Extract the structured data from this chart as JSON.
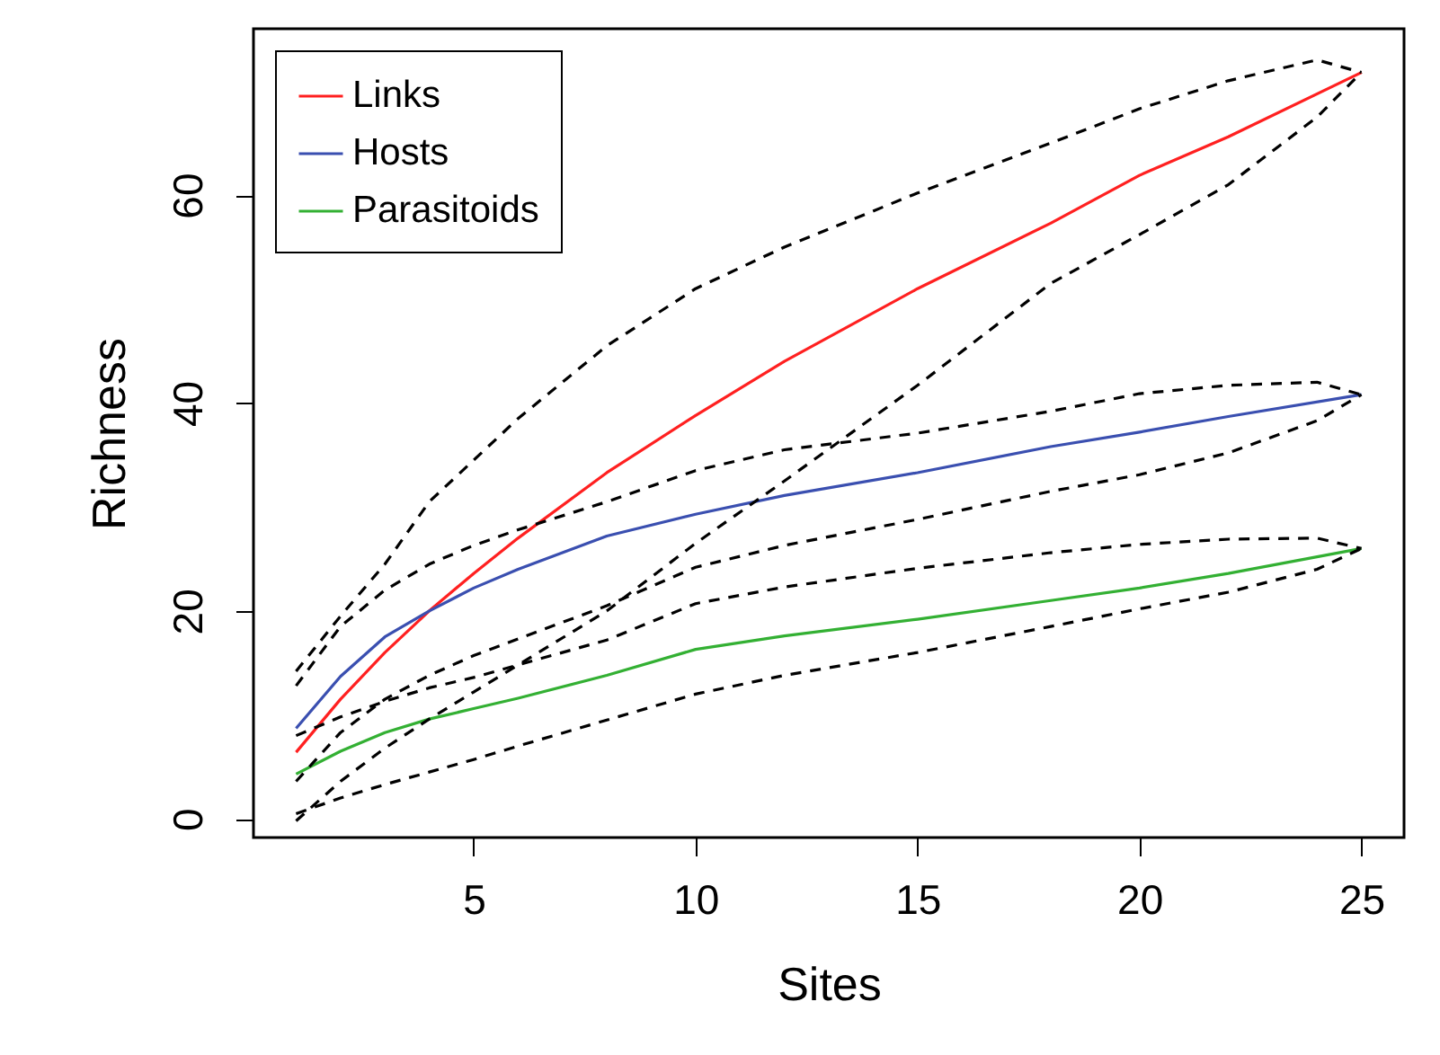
{
  "chart_data": {
    "type": "line",
    "xlabel": "Sites",
    "ylabel": "Richness",
    "xlim": [
      0.04,
      25.96
    ],
    "ylim": [
      -1.8,
      76
    ],
    "xticks": [
      5,
      10,
      15,
      20,
      25
    ],
    "yticks": [
      0,
      20,
      40,
      60
    ],
    "grid": false,
    "legend": "top left",
    "line_style": "solid",
    "series": [
      {
        "name": "Links",
        "color": "#ff2020",
        "x": [
          1,
          2,
          3,
          4,
          5,
          6,
          8,
          10,
          12,
          15,
          18,
          20,
          22,
          25
        ],
        "values": [
          6.4,
          11.5,
          16,
          20,
          23.6,
          27,
          33.3,
          38.8,
          44,
          51,
          57.3,
          61.9,
          65.6,
          71.8
        ]
      },
      {
        "name": "Hosts",
        "color": "#3a4fb0",
        "x": [
          1,
          2,
          3,
          4,
          5,
          6,
          8,
          10,
          12,
          15,
          18,
          20,
          22,
          25
        ],
        "values": [
          8.7,
          13.7,
          17.5,
          20,
          22.2,
          24,
          27.2,
          29.3,
          31.1,
          33.3,
          35.8,
          37.2,
          38.7,
          40.8
        ]
      },
      {
        "name": "Parasitoids",
        "color": "#33b033",
        "x": [
          1,
          2,
          3,
          4,
          5,
          6,
          8,
          10,
          12,
          15,
          18,
          20,
          22,
          25
        ],
        "values": [
          4.3,
          6.5,
          8.3,
          9.6,
          10.6,
          11.6,
          13.8,
          16.3,
          17.6,
          19.2,
          21,
          22.2,
          23.6,
          26
        ]
      },
      {
        "color": "#000000",
        "line_style": "dashed",
        "x": [
          1,
          2,
          3,
          4,
          5,
          6,
          8,
          10,
          12,
          15,
          18,
          20,
          22,
          24,
          25
        ],
        "values": [
          14.2,
          19.5,
          24.5,
          30.5,
          34.5,
          38.5,
          45.5,
          51,
          55,
          60.2,
          65,
          68.3,
          71,
          73,
          71.8
        ]
      },
      {
        "color": "#000000",
        "line_style": "dashed",
        "x": [
          1,
          2,
          3,
          4,
          5,
          6,
          8,
          10,
          12,
          15,
          18,
          20,
          22,
          24,
          25
        ],
        "values": [
          -0.2,
          3.6,
          6.8,
          9.6,
          12.2,
          14.8,
          20,
          26.5,
          32.5,
          41.7,
          51.5,
          56.2,
          61,
          67.5,
          71.8
        ]
      },
      {
        "color": "#000000",
        "line_style": "dashed",
        "x": [
          1,
          2,
          3,
          4,
          5,
          6,
          8,
          10,
          12,
          15,
          18,
          20,
          22,
          24,
          25
        ],
        "values": [
          12.8,
          18.5,
          22,
          24.5,
          26.3,
          27.8,
          30.5,
          33.5,
          35.5,
          37.1,
          39.2,
          40.9,
          41.7,
          42,
          40.8
        ]
      },
      {
        "color": "#000000",
        "line_style": "dashed",
        "x": [
          1,
          2,
          3,
          4,
          5,
          6,
          8,
          10,
          12,
          15,
          18,
          20,
          22,
          24,
          25
        ],
        "values": [
          3.6,
          8.3,
          11.5,
          13.8,
          15.7,
          17.3,
          20.5,
          24.2,
          26.3,
          28.8,
          31.5,
          33.1,
          35.2,
          38.3,
          40.8
        ]
      },
      {
        "color": "#000000",
        "line_style": "dashed",
        "x": [
          1,
          2,
          3,
          4,
          5,
          6,
          8,
          10,
          12,
          15,
          18,
          20,
          22,
          24,
          25
        ],
        "values": [
          8,
          9.8,
          11.3,
          12.6,
          13.6,
          14.8,
          17.2,
          20.7,
          22.3,
          24.1,
          25.6,
          26.4,
          26.9,
          27,
          26
        ]
      },
      {
        "color": "#000000",
        "line_style": "dashed",
        "x": [
          1,
          2,
          3,
          4,
          5,
          6,
          8,
          10,
          12,
          15,
          18,
          20,
          22,
          24,
          25
        ],
        "values": [
          0.5,
          2,
          3.3,
          4.5,
          5.7,
          7,
          9.5,
          12,
          13.8,
          16,
          18.5,
          20.2,
          21.8,
          24,
          26
        ]
      }
    ]
  }
}
